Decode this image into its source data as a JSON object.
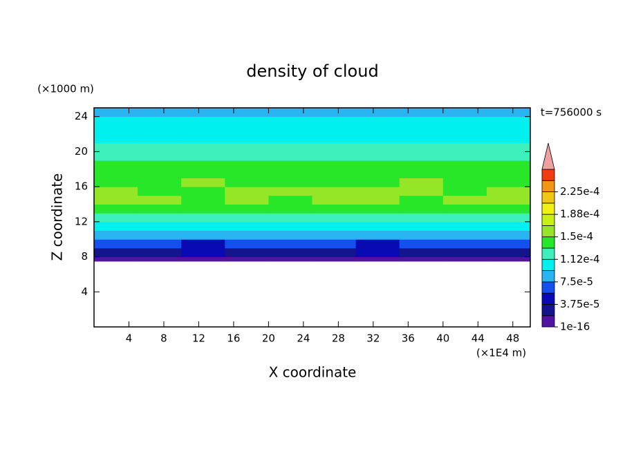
{
  "chart_data": {
    "type": "contour",
    "title": "density of cloud",
    "x_label": "X coordinate",
    "y_label": "Z coordinate",
    "x_units": "(×1E4 m)",
    "y_units": "(×1000 m)",
    "annotation": "t=756000 s",
    "xlim": [
      0,
      50
    ],
    "ylim": [
      0,
      25
    ],
    "xticks": [
      4,
      8,
      12,
      16,
      20,
      24,
      28,
      32,
      36,
      40,
      44,
      48
    ],
    "yticks": [
      4,
      8,
      12,
      16,
      20,
      24
    ],
    "field": {
      "x_edges": [
        0,
        5,
        10,
        15,
        20,
        25,
        30,
        35,
        40,
        45,
        50
      ],
      "z_edges": [
        7.5,
        8,
        9,
        10,
        11,
        12,
        13,
        14,
        15,
        16,
        17,
        18,
        19,
        20,
        21,
        22,
        23,
        24,
        25
      ],
      "values": [
        [
          1e-05,
          1e-05,
          1e-05,
          1e-05,
          1e-05,
          1e-05,
          1e-05,
          1e-05,
          1e-05,
          1e-05
        ],
        [
          3e-05,
          3e-05,
          4e-05,
          3e-05,
          3e-05,
          3e-05,
          4e-05,
          3e-05,
          3e-05,
          3e-05
        ],
        [
          6e-05,
          6e-05,
          5e-05,
          6e-05,
          6e-05,
          6e-05,
          5e-05,
          6e-05,
          6e-05,
          6e-05
        ],
        [
          8.5e-05,
          8.5e-05,
          8.5e-05,
          8.5e-05,
          8.5e-05,
          8.5e-05,
          8.5e-05,
          8.5e-05,
          8.5e-05,
          8.5e-05
        ],
        [
          0.000105,
          0.000105,
          0.000105,
          0.000105,
          0.000105,
          0.000105,
          0.000105,
          0.000105,
          0.000105,
          0.000105
        ],
        [
          0.000125,
          0.000125,
          0.00012,
          0.000125,
          0.00013,
          0.00013,
          0.000125,
          0.000125,
          0.000125,
          0.000125
        ],
        [
          0.00014,
          0.00014,
          0.00014,
          0.00014,
          0.00014,
          0.00014,
          0.00014,
          0.00014,
          0.00014,
          0.00014
        ],
        [
          0.000155,
          0.000155,
          0.000145,
          0.000155,
          0.000145,
          0.000155,
          0.000155,
          0.000145,
          0.000155,
          0.000155
        ],
        [
          0.000155,
          0.000145,
          0.000145,
          0.000155,
          0.000155,
          0.000155,
          0.000155,
          0.000155,
          0.000145,
          0.000155
        ],
        [
          0.000145,
          0.000145,
          0.000155,
          0.000145,
          0.000145,
          0.000145,
          0.000145,
          0.000155,
          0.000145,
          0.000145
        ],
        [
          0.00014,
          0.00014,
          0.00014,
          0.00014,
          0.00014,
          0.00014,
          0.00014,
          0.00014,
          0.00014,
          0.00014
        ],
        [
          0.000135,
          0.000135,
          0.000135,
          0.000135,
          0.000135,
          0.000135,
          0.000135,
          0.000135,
          0.000135,
          0.000135
        ],
        [
          0.000125,
          0.000125,
          0.000125,
          0.000125,
          0.000125,
          0.000125,
          0.000125,
          0.000125,
          0.000125,
          0.000125
        ],
        [
          0.000115,
          0.000115,
          0.000115,
          0.000115,
          0.000115,
          0.000115,
          0.000115,
          0.000115,
          0.000115,
          0.000115
        ],
        [
          0.000105,
          0.000105,
          0.000105,
          0.000105,
          0.000105,
          0.000105,
          0.000105,
          0.000105,
          0.000105,
          0.000105
        ],
        [
          0.0001,
          0.0001,
          0.0001,
          0.0001,
          0.0001,
          0.0001,
          0.0001,
          0.0001,
          0.0001,
          0.0001
        ],
        [
          9.8e-05,
          9.8e-05,
          9.8e-05,
          9.8e-05,
          9.8e-05,
          9.8e-05,
          9.8e-05,
          9.8e-05,
          9.8e-05,
          9.8e-05
        ],
        [
          8.5e-05,
          8.5e-05,
          8.5e-05,
          8.5e-05,
          8.5e-05,
          8.5e-05,
          8.5e-05,
          8.5e-05,
          8.5e-05,
          8.5e-05
        ]
      ]
    },
    "colorbar": {
      "levels": [
        1e-16,
        1.875e-05,
        3.75e-05,
        5.625e-05,
        7.5e-05,
        9.375e-05,
        0.0001125,
        0.00013125,
        0.00015,
        0.00016875,
        0.0001875,
        0.00020625,
        0.000225,
        0.00024375,
        0.0002625
      ],
      "colors": [
        "#5014a0",
        "#14148c",
        "#0a0ab4",
        "#1450f0",
        "#28b4f0",
        "#00f0f0",
        "#3cf0bc",
        "#28e628",
        "#96e628",
        "#c8f014",
        "#f0f014",
        "#f0c814",
        "#f09614",
        "#f03c14"
      ],
      "over_color": "#f0a0a0",
      "ticks": [
        {
          "value": 1e-16,
          "label": "1e-16"
        },
        {
          "value": 3.75e-05,
          "label": "3.75e-5"
        },
        {
          "value": 7.5e-05,
          "label": "7.5e-5"
        },
        {
          "value": 0.0001125,
          "label": "1.12e-4"
        },
        {
          "value": 0.00015,
          "label": "1.5e-4"
        },
        {
          "value": 0.0001875,
          "label": "1.88e-4"
        },
        {
          "value": 0.000225,
          "label": "2.25e-4"
        }
      ]
    }
  }
}
